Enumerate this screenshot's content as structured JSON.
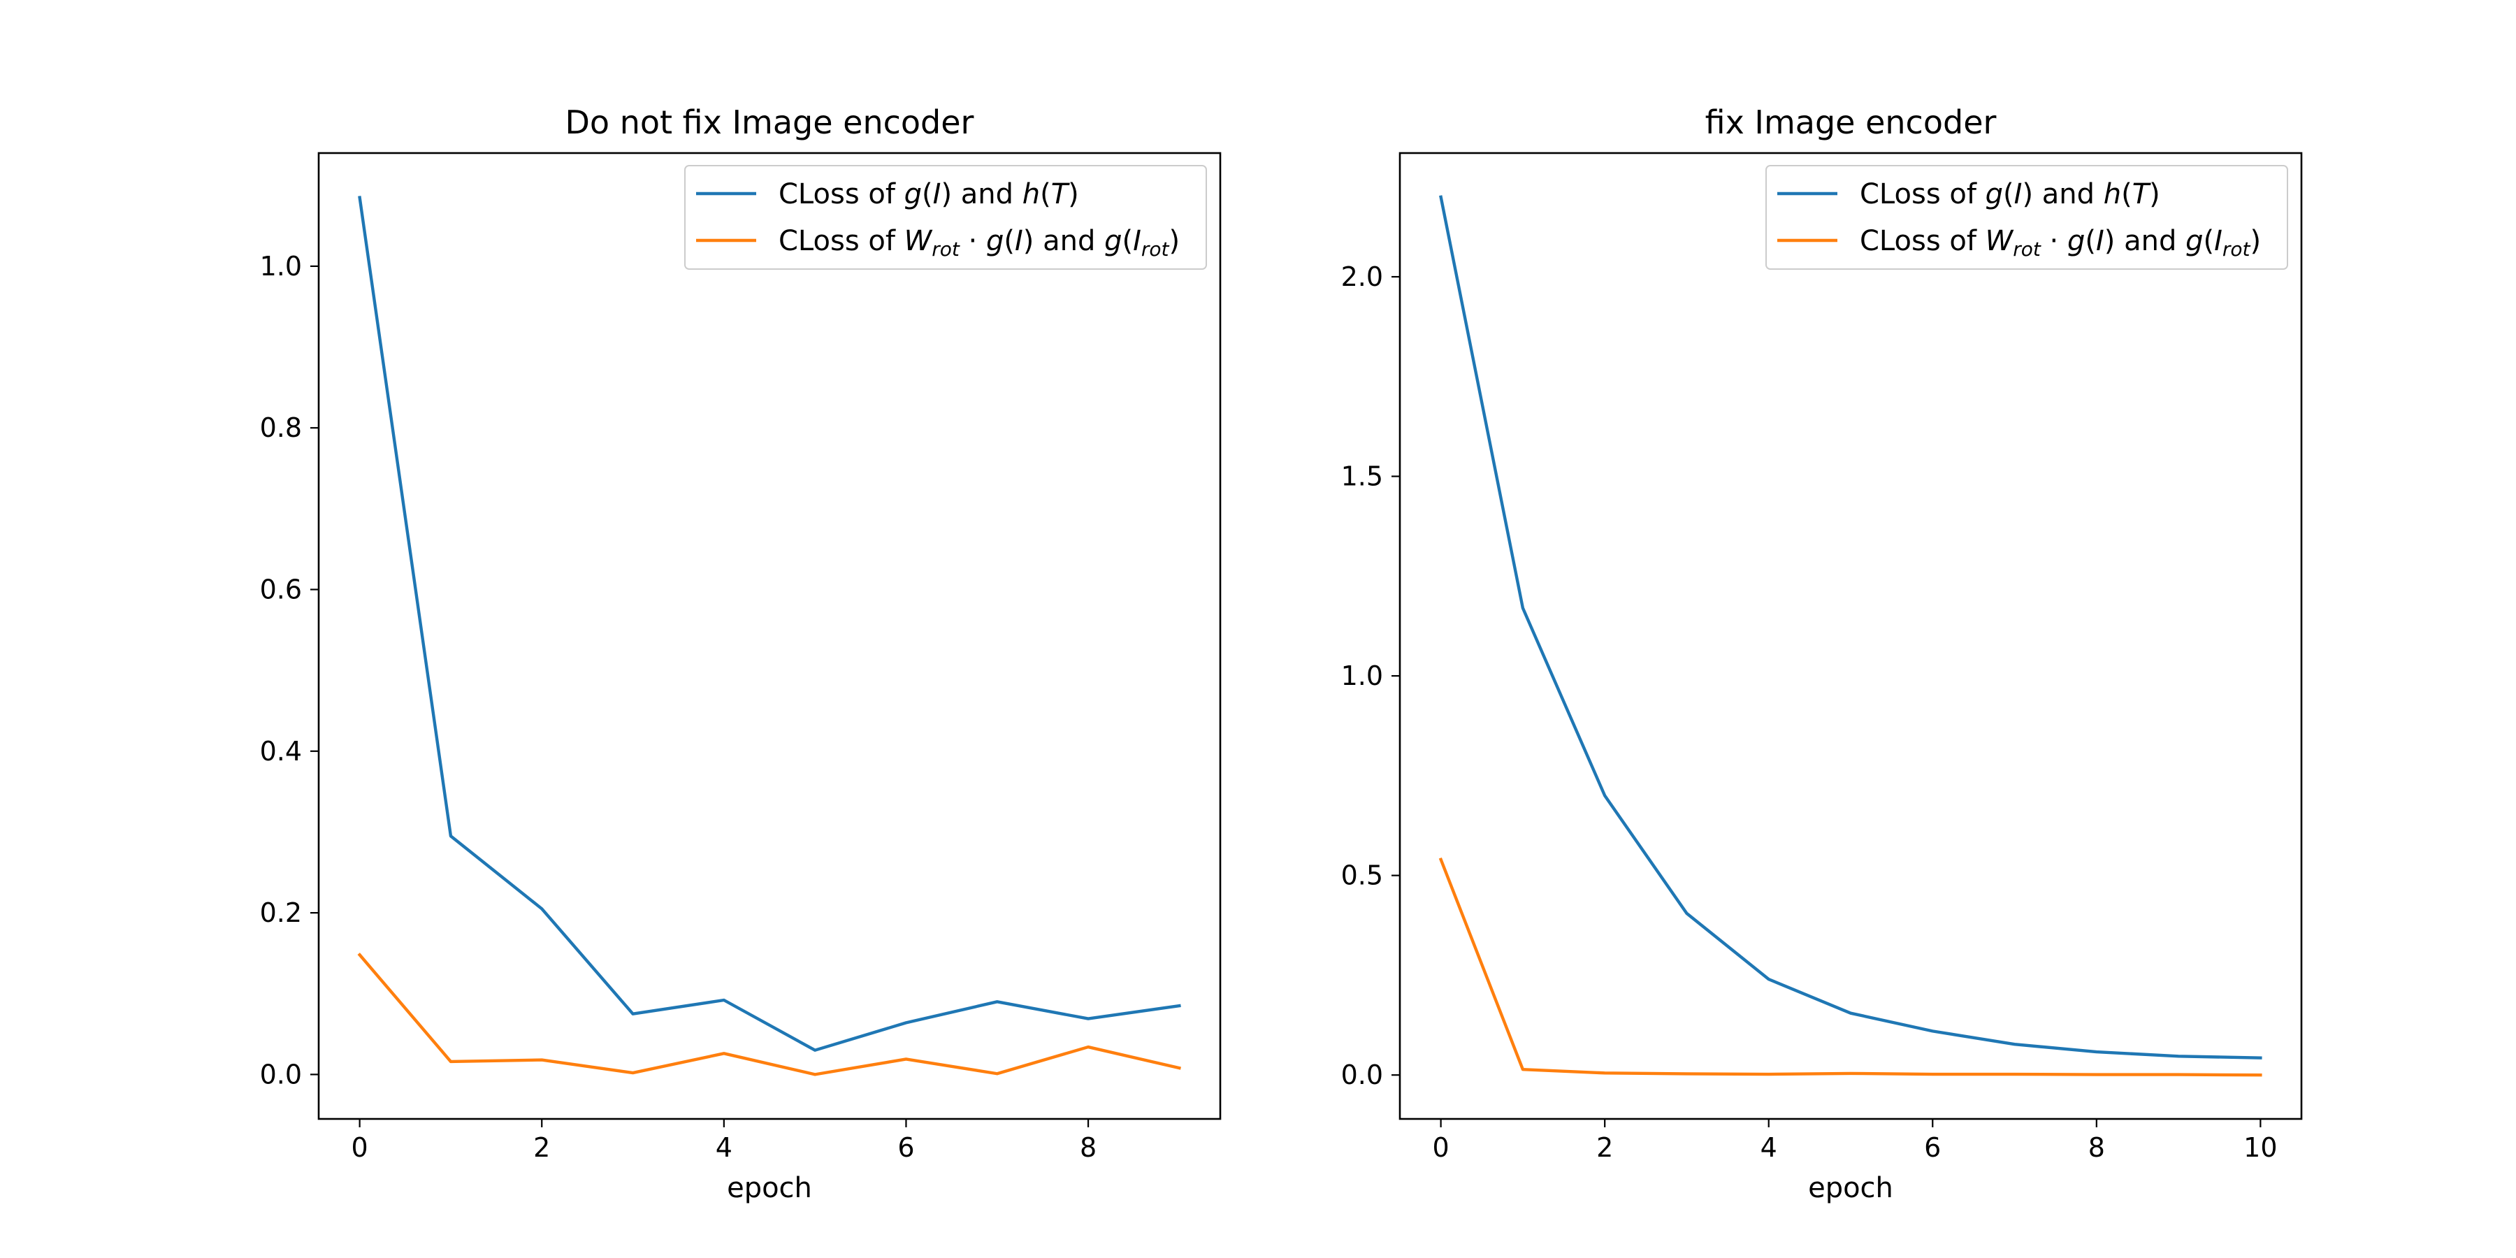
{
  "chart_data": [
    {
      "type": "line",
      "title": "Do not fix Image encoder",
      "xlabel": "epoch",
      "ylabel": "",
      "xlim": [
        -0.45,
        9.45
      ],
      "ylim": [
        -0.055,
        1.14
      ],
      "xticks": [
        0,
        2,
        4,
        6,
        8
      ],
      "xtick_labels": [
        "0",
        "2",
        "4",
        "6",
        "8"
      ],
      "yticks": [
        0.0,
        0.2,
        0.4,
        0.6,
        0.8,
        1.0
      ],
      "ytick_labels": [
        "0.0",
        "0.2",
        "0.4",
        "0.6",
        "0.8",
        "1.0"
      ],
      "grid": false,
      "legend_position": "top-right",
      "x": [
        0,
        1,
        2,
        3,
        4,
        5,
        6,
        7,
        8,
        9
      ],
      "series": [
        {
          "name_parts": [
            [
              "CLoss of ",
              "n"
            ],
            [
              "g",
              "i"
            ],
            [
              "(",
              "n"
            ],
            [
              "I",
              "i"
            ],
            [
              ") and ",
              "n"
            ],
            [
              "h",
              "i"
            ],
            [
              "(",
              "n"
            ],
            [
              "T",
              "i"
            ],
            [
              ")",
              "n"
            ]
          ],
          "color": "#1f77b4",
          "values": [
            1.085,
            0.295,
            0.205,
            0.075,
            0.092,
            0.03,
            0.064,
            0.09,
            0.069,
            0.085
          ]
        },
        {
          "name_parts": [
            [
              "CLoss of ",
              "n"
            ],
            [
              "W",
              "i"
            ],
            [
              "rot",
              "is"
            ],
            [
              " · ",
              "n"
            ],
            [
              "g",
              "i"
            ],
            [
              "(",
              "n"
            ],
            [
              "I",
              "i"
            ],
            [
              ") and ",
              "n"
            ],
            [
              "g",
              "i"
            ],
            [
              "(",
              "n"
            ],
            [
              "I",
              "i"
            ],
            [
              "rot",
              "is"
            ],
            [
              ")",
              "n"
            ]
          ],
          "color": "#ff7f0e",
          "values": [
            0.148,
            0.016,
            0.018,
            0.002,
            0.026,
            0.0,
            0.019,
            0.001,
            0.034,
            0.008
          ]
        }
      ]
    },
    {
      "type": "line",
      "title": "fix Image encoder",
      "xlabel": "epoch",
      "ylabel": "",
      "xlim": [
        -0.5,
        10.5
      ],
      "ylim": [
        -0.11,
        2.31
      ],
      "xticks": [
        0,
        2,
        4,
        6,
        8,
        10
      ],
      "xtick_labels": [
        "0",
        "2",
        "4",
        "6",
        "8",
        "10"
      ],
      "yticks": [
        0.0,
        0.5,
        1.0,
        1.5,
        2.0
      ],
      "ytick_labels": [
        "0.0",
        "0.5",
        "1.0",
        "1.5",
        "2.0"
      ],
      "grid": false,
      "legend_position": "top-right",
      "x": [
        0,
        1,
        2,
        3,
        4,
        5,
        6,
        7,
        8,
        9,
        10
      ],
      "series": [
        {
          "name_parts": [
            [
              "CLoss of ",
              "n"
            ],
            [
              "g",
              "i"
            ],
            [
              "(",
              "n"
            ],
            [
              "I",
              "i"
            ],
            [
              ") and ",
              "n"
            ],
            [
              "h",
              "i"
            ],
            [
              "(",
              "n"
            ],
            [
              "T",
              "i"
            ],
            [
              ")",
              "n"
            ]
          ],
          "color": "#1f77b4",
          "values": [
            2.2,
            1.17,
            0.7,
            0.405,
            0.24,
            0.155,
            0.11,
            0.077,
            0.058,
            0.047,
            0.043
          ]
        },
        {
          "name_parts": [
            [
              "CLoss of ",
              "n"
            ],
            [
              "W",
              "i"
            ],
            [
              "rot",
              "is"
            ],
            [
              " · ",
              "n"
            ],
            [
              "g",
              "i"
            ],
            [
              "(",
              "n"
            ],
            [
              "I",
              "i"
            ],
            [
              ") and ",
              "n"
            ],
            [
              "g",
              "i"
            ],
            [
              "(",
              "n"
            ],
            [
              "I",
              "i"
            ],
            [
              "rot",
              "is"
            ],
            [
              ")",
              "n"
            ]
          ],
          "color": "#ff7f0e",
          "values": [
            0.54,
            0.014,
            0.005,
            0.003,
            0.002,
            0.004,
            0.002,
            0.002,
            0.001,
            0.001,
            0.0
          ]
        }
      ]
    }
  ]
}
